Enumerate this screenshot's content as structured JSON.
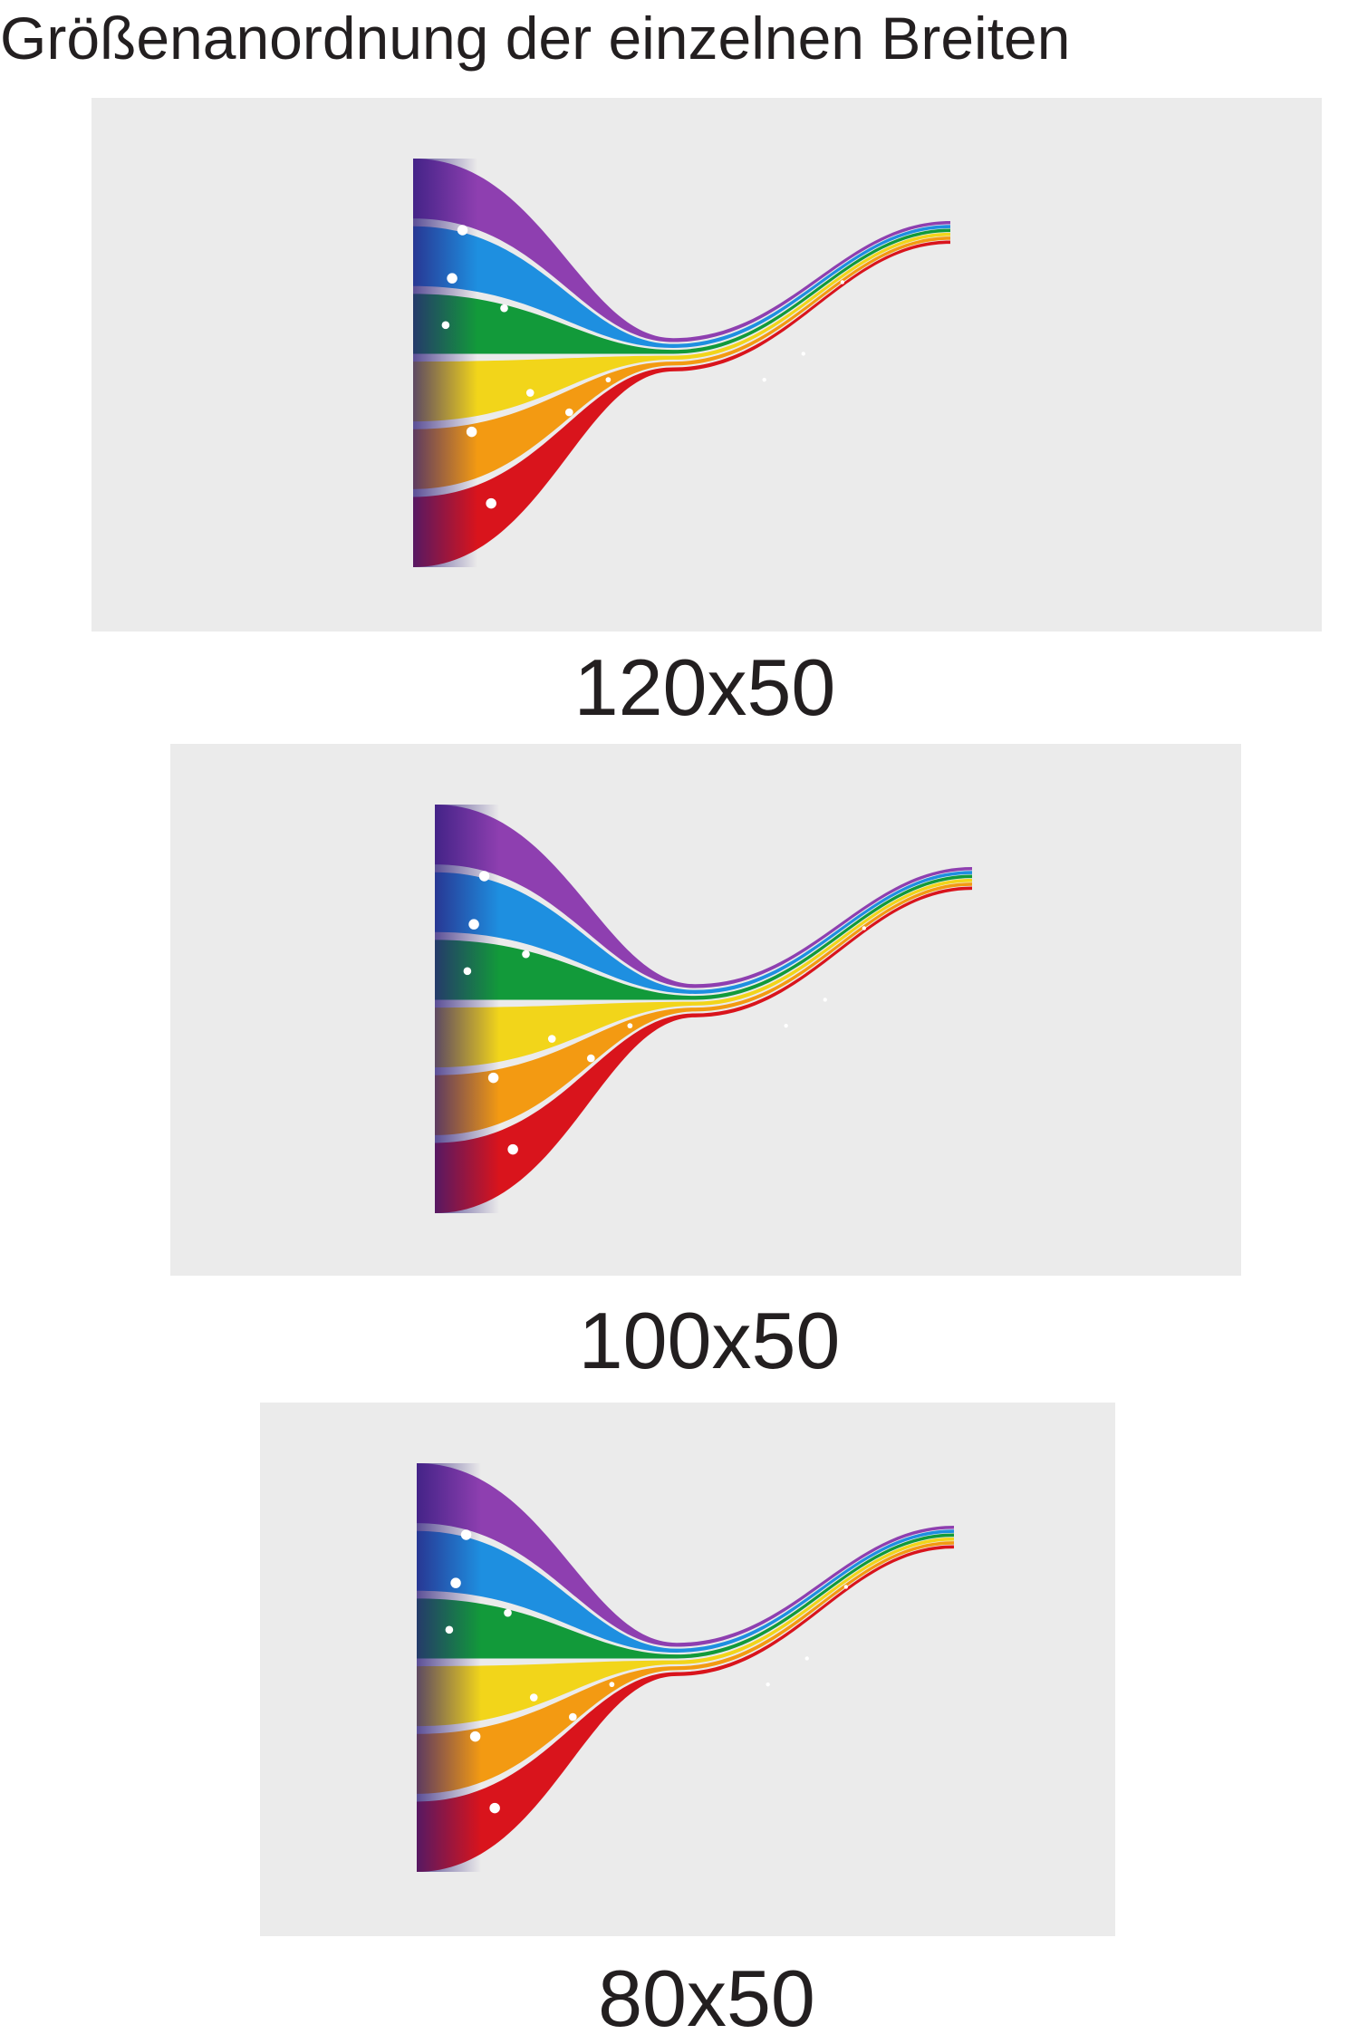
{
  "header": {
    "title": "Größenanordnung der einzelnen Breiten"
  },
  "panels": [
    {
      "label": "120x50"
    },
    {
      "label": "100x50"
    },
    {
      "label": "80x50"
    }
  ]
}
